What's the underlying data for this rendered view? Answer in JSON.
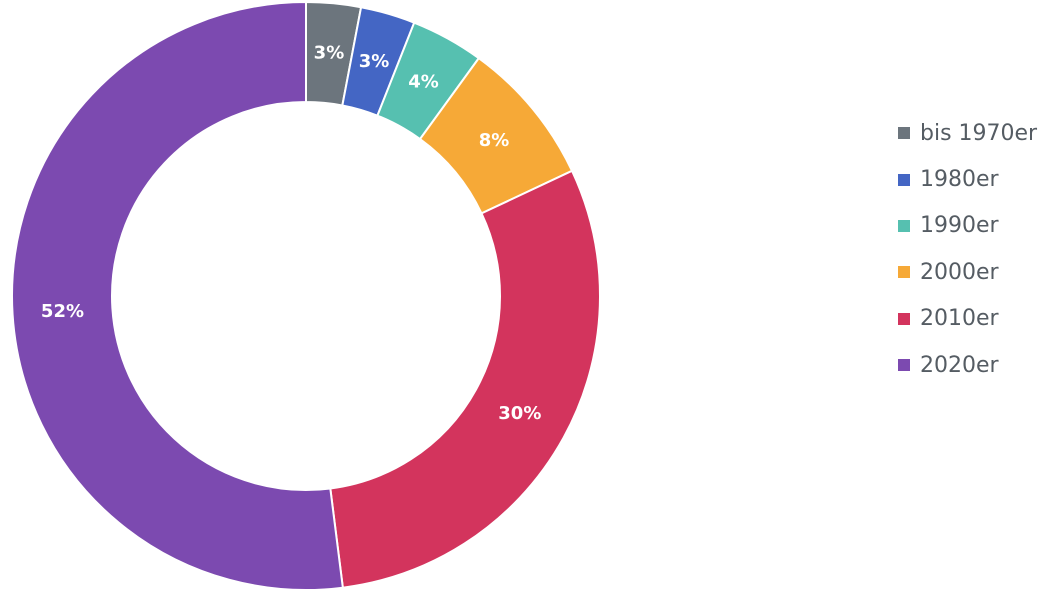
{
  "chart_data": {
    "type": "pie",
    "donut": true,
    "legend_position": "right",
    "categories": [
      "bis 1970er",
      "1980er",
      "1990er",
      "2000er",
      "2010er",
      "2020er"
    ],
    "values": [
      3,
      3,
      4,
      8,
      30,
      52
    ],
    "labels": [
      "3%",
      "3%",
      "4%",
      "8%",
      "30%",
      "52%"
    ],
    "colors": [
      "#6c757d",
      "#4466c4",
      "#56c0b0",
      "#f6a937",
      "#d3345d",
      "#7c4ab0"
    ]
  }
}
